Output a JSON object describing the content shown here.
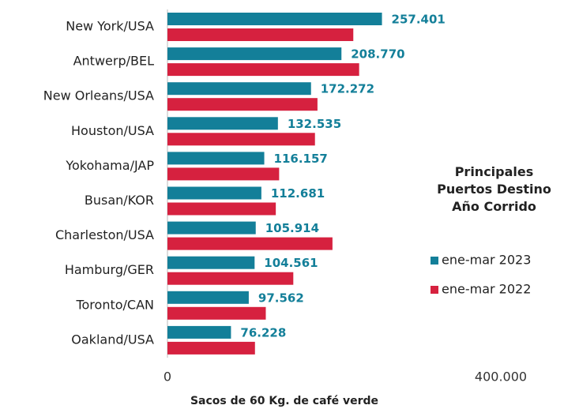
{
  "chart_data": {
    "type": "bar",
    "orientation": "horizontal",
    "title": "Principales Puertos Destino Año Corrido",
    "x_label": "Sacos de 60 Kg. de café verde",
    "categories": [
      "New York/USA",
      "Antwerp/BEL",
      "New Orleans/USA",
      "Houston/USA",
      "Yokohama/JAP",
      "Busan/KOR",
      "Charleston/USA",
      "Hamburg/GER",
      "Toronto/CAN",
      "Oakland/USA"
    ],
    "series": [
      {
        "name": "ene-mar 2023",
        "color": "#137f99",
        "values": [
          257401,
          208770,
          172272,
          132535,
          116157,
          112681,
          105914,
          104561,
          97562,
          76228
        ],
        "value_labels": [
          "257.401",
          "208.770",
          "172.272",
          "132.535",
          "116.157",
          "112.681",
          "105.914",
          "104.561",
          "97.562",
          "76.228"
        ]
      },
      {
        "name": "ene-mar 2022",
        "color": "#d6213f",
        "values": [
          223000,
          230000,
          180000,
          177000,
          134000,
          130000,
          198000,
          151000,
          118000,
          105000
        ]
      }
    ],
    "xlim": [
      0,
      400000
    ],
    "xticks": [
      0,
      {
        "value": 400000,
        "label": "400.000"
      }
    ],
    "legend": "right"
  }
}
